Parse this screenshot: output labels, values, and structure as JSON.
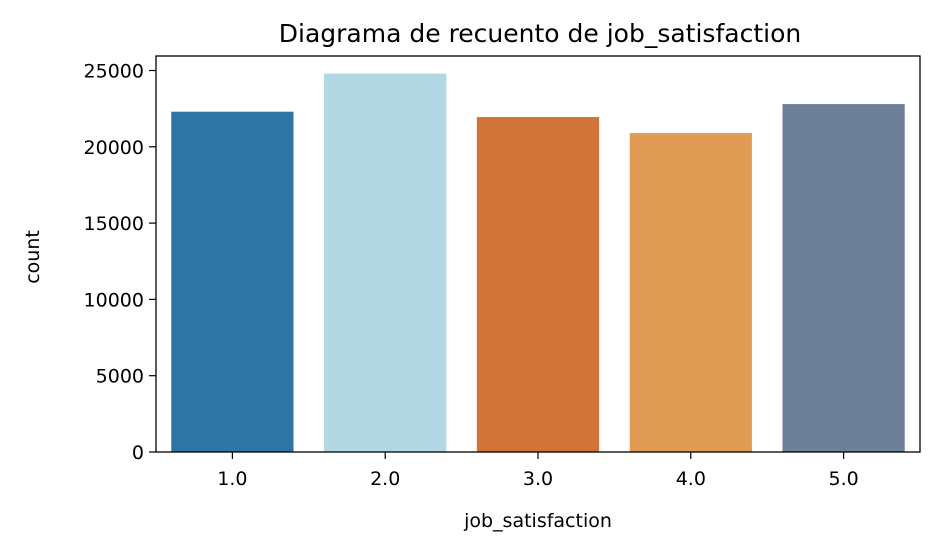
{
  "chart_data": {
    "type": "bar",
    "title": "Diagrama de recuento de job_satisfaction",
    "xlabel": "job_satisfaction",
    "ylabel": "count",
    "categories": [
      "1.0",
      "2.0",
      "3.0",
      "4.0",
      "5.0"
    ],
    "values": [
      22300,
      24800,
      21950,
      20900,
      22800
    ],
    "colors": [
      "#2e75a6",
      "#b0d7e2",
      "#d2733a",
      "#e09c55",
      "#6d7f99"
    ],
    "yticks": [
      0,
      5000,
      10000,
      15000,
      20000,
      25000
    ],
    "ylim": [
      0,
      25950
    ],
    "grid": false,
    "legend": "none"
  }
}
